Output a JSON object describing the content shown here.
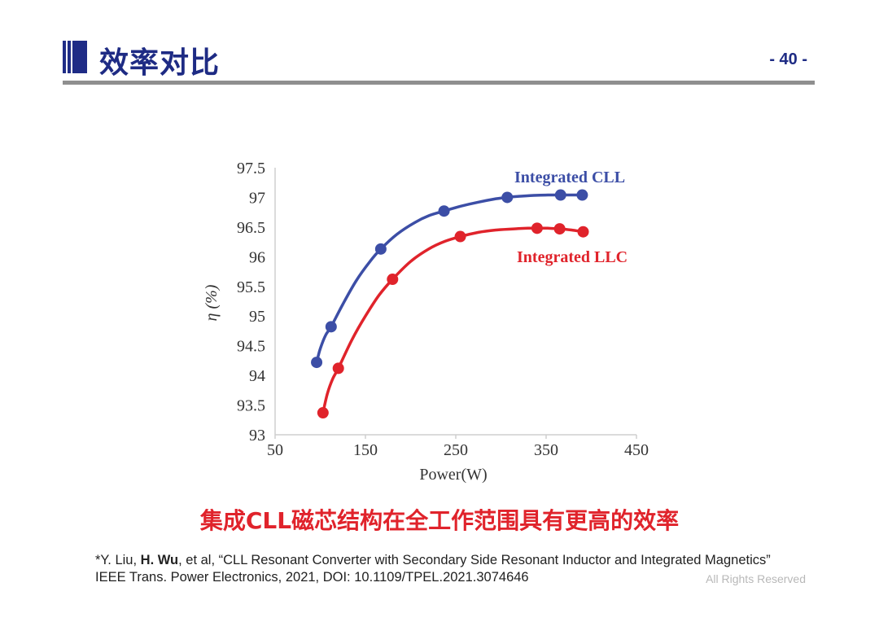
{
  "header": {
    "title": "效率对比",
    "page_number": "- 40 -"
  },
  "colors": {
    "title_blue": "#1e2b84",
    "cll_blue": "#3c4ea6",
    "llc_red": "#e0232b",
    "caption_red": "#e0232b",
    "rule_gray": "#8f8f8f"
  },
  "chart_data": {
    "type": "line",
    "title": "",
    "xlabel": "Power(W)",
    "ylabel": "η (%)",
    "xlim": [
      50,
      450
    ],
    "ylim": [
      93,
      97.5
    ],
    "x_ticks": [
      "50",
      "150",
      "250",
      "350",
      "450"
    ],
    "y_ticks": [
      "93",
      "93.5",
      "94",
      "94.5",
      "95",
      "95.5",
      "96",
      "96.5",
      "97",
      "97.5"
    ],
    "grid": false,
    "series": [
      {
        "name": "Integrated CLL",
        "color": "#3c4ea6",
        "x": [
          96,
          112,
          167,
          237,
          307,
          366,
          390
        ],
        "y": [
          94.22,
          94.82,
          96.13,
          96.77,
          97.0,
          97.04,
          97.04
        ],
        "curve_x": [
          96,
          100,
          106,
          112,
          125,
          140,
          155,
          167,
          185,
          205,
          220,
          237,
          255,
          275,
          292,
          307,
          322,
          340,
          352,
          366,
          378,
          390
        ],
        "curve_y": [
          94.22,
          94.45,
          94.68,
          94.82,
          95.2,
          95.6,
          95.92,
          96.13,
          96.38,
          96.58,
          96.69,
          96.77,
          96.85,
          96.92,
          96.97,
          97.0,
          97.02,
          97.035,
          97.04,
          97.04,
          97.04,
          97.04
        ]
      },
      {
        "name": "Integrated LLC",
        "color": "#e0232b",
        "x": [
          103,
          120,
          180,
          255,
          340,
          365,
          391
        ],
        "y": [
          93.37,
          94.12,
          95.62,
          96.34,
          96.48,
          96.47,
          96.42
        ],
        "curve_x": [
          103,
          108,
          114,
          120,
          135,
          150,
          165,
          180,
          200,
          220,
          238,
          255,
          275,
          295,
          315,
          330,
          340,
          352,
          365,
          378,
          391
        ],
        "curve_y": [
          93.37,
          93.7,
          93.95,
          94.12,
          94.6,
          95.0,
          95.35,
          95.62,
          95.92,
          96.13,
          96.26,
          96.34,
          96.41,
          96.45,
          96.47,
          96.48,
          96.48,
          96.48,
          96.47,
          96.45,
          96.42
        ]
      }
    ]
  },
  "caption": "集成CLL磁芯结构在全工作范围具有更高的效率",
  "reference": {
    "prefix": "*Y. Liu, ",
    "author_bold": "H. Wu",
    "rest": ", et al, “CLL Resonant Converter with Secondary Side Resonant Inductor and Integrated Magnetics” IEEE Trans. Power Electronics, 2021, DOI: 10.1109/TPEL.2021.3074646"
  },
  "footer": {
    "rights": "All Rights Reserved"
  }
}
